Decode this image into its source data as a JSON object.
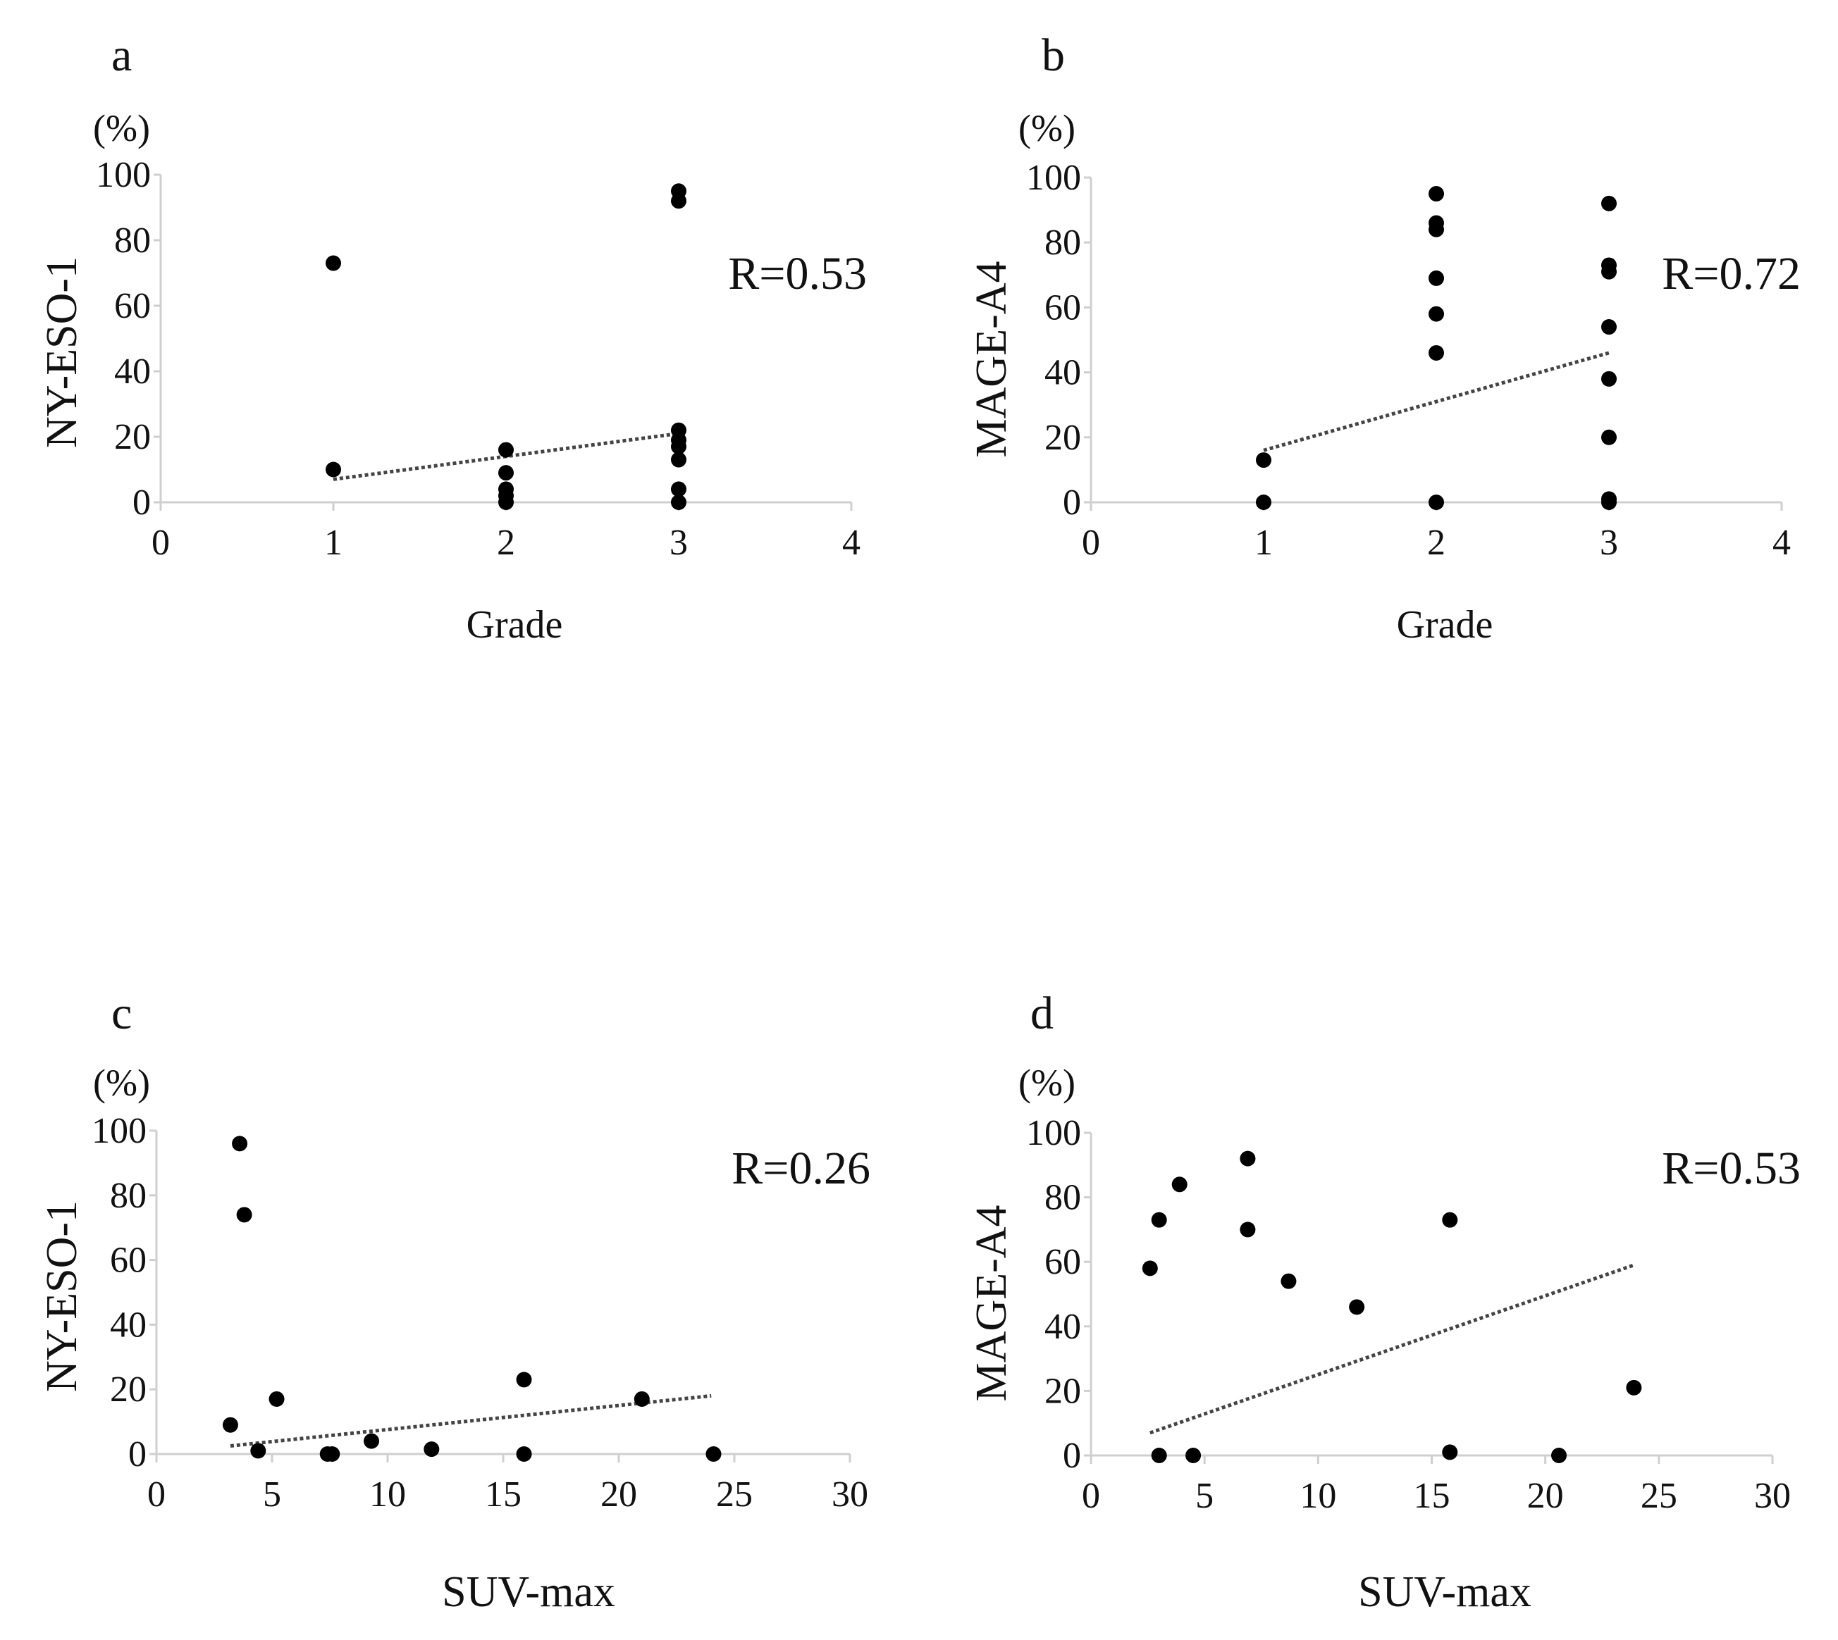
{
  "chart_data": [
    {
      "type": "scatter",
      "panel": "a",
      "unit_label": "(%)",
      "ylabel": "NY-ESO-1",
      "xlabel": "Grade",
      "xlim": [
        0,
        4
      ],
      "ylim": [
        0,
        100
      ],
      "xticks": [
        0,
        1,
        2,
        3,
        4
      ],
      "yticks": [
        0,
        20,
        40,
        60,
        80,
        100
      ],
      "annotation": "R=0.53",
      "trendline": [
        [
          1,
          7
        ],
        [
          3,
          21
        ]
      ],
      "points": [
        [
          1,
          73
        ],
        [
          1,
          10
        ],
        [
          2,
          16
        ],
        [
          2,
          9
        ],
        [
          2,
          4
        ],
        [
          2,
          2
        ],
        [
          2,
          0
        ],
        [
          3,
          95
        ],
        [
          3,
          92
        ],
        [
          3,
          22
        ],
        [
          3,
          19
        ],
        [
          3,
          17
        ],
        [
          3,
          13
        ],
        [
          3,
          4
        ],
        [
          3,
          0
        ]
      ]
    },
    {
      "type": "scatter",
      "panel": "b",
      "unit_label": "(%)",
      "ylabel": "MAGE-A4",
      "xlabel": "Grade",
      "xlim": [
        0,
        4
      ],
      "ylim": [
        0,
        100
      ],
      "xticks": [
        0,
        1,
        2,
        3,
        4
      ],
      "yticks": [
        0,
        20,
        40,
        60,
        80,
        100
      ],
      "annotation": "R=0.72",
      "trendline": [
        [
          1,
          16
        ],
        [
          3,
          46
        ]
      ],
      "points": [
        [
          1,
          13
        ],
        [
          1,
          0
        ],
        [
          2,
          95
        ],
        [
          2,
          86
        ],
        [
          2,
          84
        ],
        [
          2,
          69
        ],
        [
          2,
          58
        ],
        [
          2,
          46
        ],
        [
          2,
          0
        ],
        [
          3,
          92
        ],
        [
          3,
          73
        ],
        [
          3,
          71
        ],
        [
          3,
          54
        ],
        [
          3,
          38
        ],
        [
          3,
          20
        ],
        [
          3,
          1
        ],
        [
          3,
          0
        ]
      ]
    },
    {
      "type": "scatter",
      "panel": "c",
      "unit_label": "(%)",
      "ylabel": "NY-ESO-1",
      "xlabel": "SUV-max",
      "xlim": [
        0,
        30
      ],
      "ylim": [
        0,
        100
      ],
      "xticks": [
        0,
        5,
        10,
        15,
        20,
        25,
        30
      ],
      "yticks": [
        0,
        20,
        40,
        60,
        80,
        100
      ],
      "annotation": "R=0.26",
      "trendline": [
        [
          3.2,
          2.5
        ],
        [
          24,
          18
        ]
      ],
      "points": [
        [
          3.6,
          96
        ],
        [
          3.8,
          74
        ],
        [
          3.2,
          9
        ],
        [
          5.2,
          17
        ],
        [
          4.4,
          1
        ],
        [
          7.4,
          0
        ],
        [
          7.6,
          0
        ],
        [
          9.3,
          4
        ],
        [
          11.9,
          1.5
        ],
        [
          15.9,
          23
        ],
        [
          15.9,
          0
        ],
        [
          21.0,
          17
        ],
        [
          24.1,
          0
        ]
      ]
    },
    {
      "type": "scatter",
      "panel": "d",
      "unit_label": "(%)",
      "ylabel": "MAGE-A4",
      "xlabel": "SUV-max",
      "xlim": [
        0,
        30
      ],
      "ylim": [
        0,
        100
      ],
      "xticks": [
        0,
        5,
        10,
        15,
        20,
        25,
        30
      ],
      "yticks": [
        0,
        20,
        40,
        60,
        80,
        100
      ],
      "annotation": "R=0.53",
      "trendline": [
        [
          2.6,
          7
        ],
        [
          23.9,
          59
        ]
      ],
      "points": [
        [
          2.6,
          58
        ],
        [
          3.0,
          73
        ],
        [
          3.9,
          84
        ],
        [
          6.9,
          92
        ],
        [
          6.9,
          70
        ],
        [
          8.7,
          54
        ],
        [
          11.7,
          46
        ],
        [
          15.8,
          73
        ],
        [
          15.8,
          1
        ],
        [
          23.9,
          21
        ],
        [
          3.0,
          0
        ],
        [
          4.5,
          0
        ],
        [
          20.6,
          0
        ]
      ]
    }
  ]
}
